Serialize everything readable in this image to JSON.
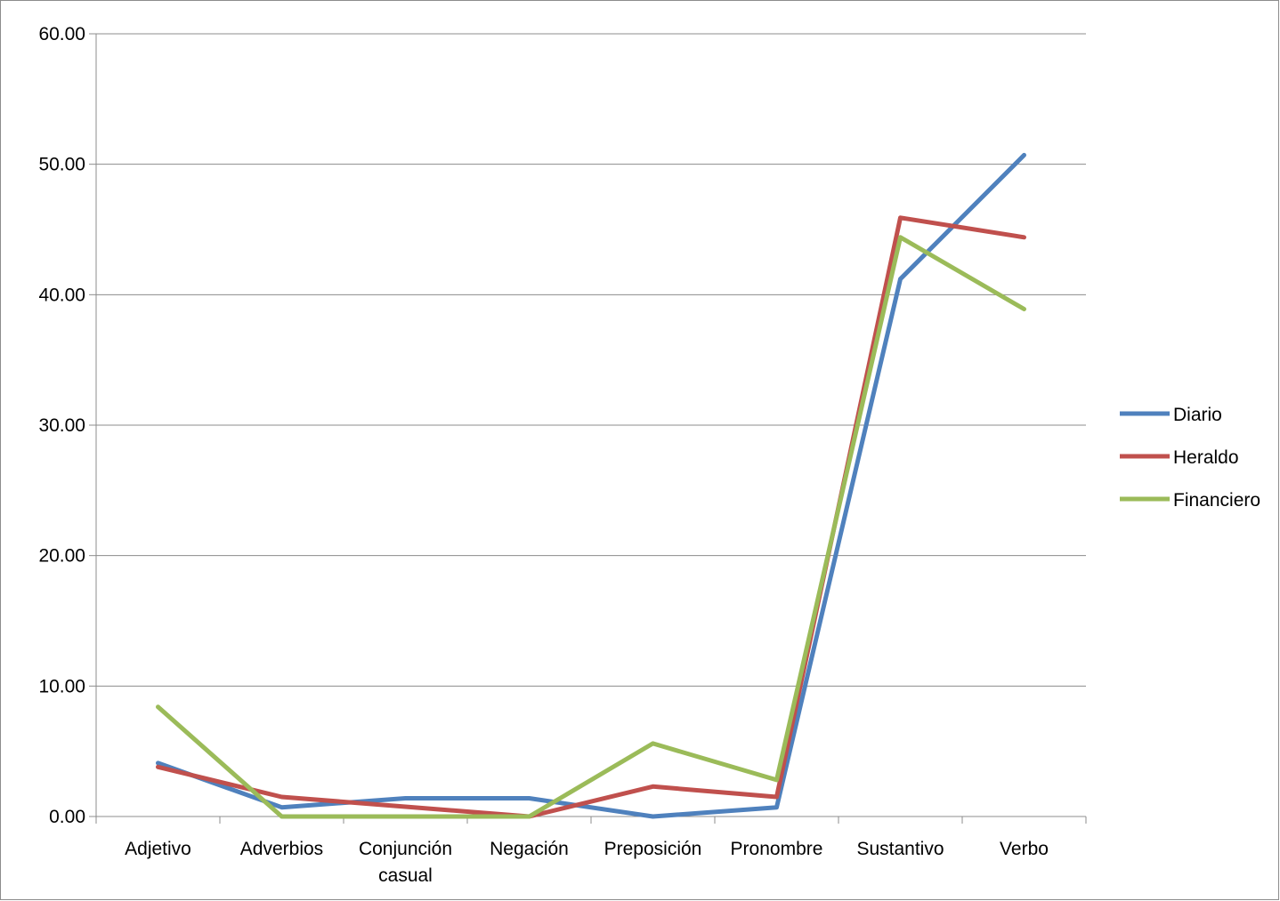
{
  "chart_data": {
    "type": "line",
    "title": "",
    "xlabel": "",
    "ylabel": "",
    "categories": [
      [
        "Adjetivo"
      ],
      [
        "Adverbios"
      ],
      [
        "Conjunción",
        "casual"
      ],
      [
        "Negación"
      ],
      [
        "Preposición"
      ],
      [
        "Pronombre"
      ],
      [
        "Sustantivo"
      ],
      [
        "Verbo"
      ]
    ],
    "ylim": [
      0,
      60
    ],
    "yticks": [
      "0.00",
      "10.00",
      "20.00",
      "30.00",
      "40.00",
      "50.00",
      "60.00"
    ],
    "grid": true,
    "legend_position": "right",
    "series": [
      {
        "name": "Diario",
        "color": "#4F81BD",
        "values": [
          4.1,
          0.7,
          1.4,
          1.4,
          0.0,
          0.7,
          41.2,
          50.7
        ]
      },
      {
        "name": "Heraldo",
        "color": "#C0504D",
        "values": [
          3.8,
          1.5,
          0.75,
          0.0,
          2.3,
          1.5,
          45.9,
          44.4
        ]
      },
      {
        "name": "Financiero",
        "color": "#9BBB59",
        "values": [
          8.4,
          0.0,
          0.0,
          0.0,
          5.6,
          2.8,
          44.4,
          38.9
        ]
      }
    ]
  }
}
